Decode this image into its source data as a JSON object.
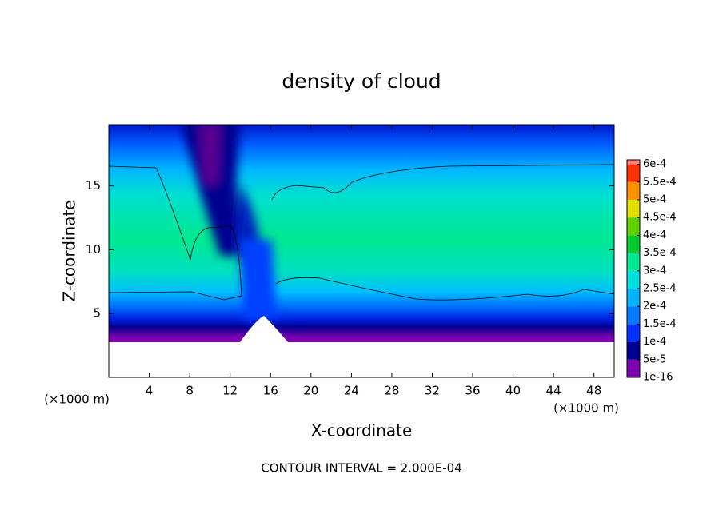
{
  "chart_data": {
    "type": "contour",
    "title": "density of cloud",
    "x_label": "X-coordinate",
    "y_label": "Z-coordinate",
    "x_unit_label": "(×1000 m)",
    "note": "CONTOUR INTERVAL = 2.000E-04",
    "xlim": [
      0,
      50
    ],
    "xticks": [
      4,
      8,
      12,
      16,
      20,
      24,
      28,
      32,
      36,
      40,
      44,
      48
    ],
    "ylim": [
      0,
      19.8
    ],
    "yticks": [
      5,
      10,
      15
    ],
    "colorbar": {
      "levels": [
        {
          "value": 1e-16,
          "label": "1e-16"
        },
        {
          "value": 5e-05,
          "label": "5e-5"
        },
        {
          "value": 0.0001,
          "label": "1e-4"
        },
        {
          "value": 0.00015,
          "label": "1.5e-4"
        },
        {
          "value": 0.0002,
          "label": "2e-4"
        },
        {
          "value": 0.00025,
          "label": "2.5e-4"
        },
        {
          "value": 0.0003,
          "label": "3e-4"
        },
        {
          "value": 0.00035,
          "label": "3.5e-4"
        },
        {
          "value": 0.0004,
          "label": "4e-4"
        },
        {
          "value": 0.00045,
          "label": "4.5e-4"
        },
        {
          "value": 0.0005,
          "label": "5e-4"
        },
        {
          "value": 0.00055,
          "label": "5.5e-4"
        },
        {
          "value": 0.0006,
          "label": "6e-4"
        }
      ],
      "colors": [
        "#7a00b0",
        "#000090",
        "#0030ff",
        "#0078ff",
        "#00b4ff",
        "#00e0e0",
        "#00e890",
        "#00cc30",
        "#60d000",
        "#e0e000",
        "#ff9000",
        "#ff3000",
        "#ff8080"
      ]
    }
  }
}
